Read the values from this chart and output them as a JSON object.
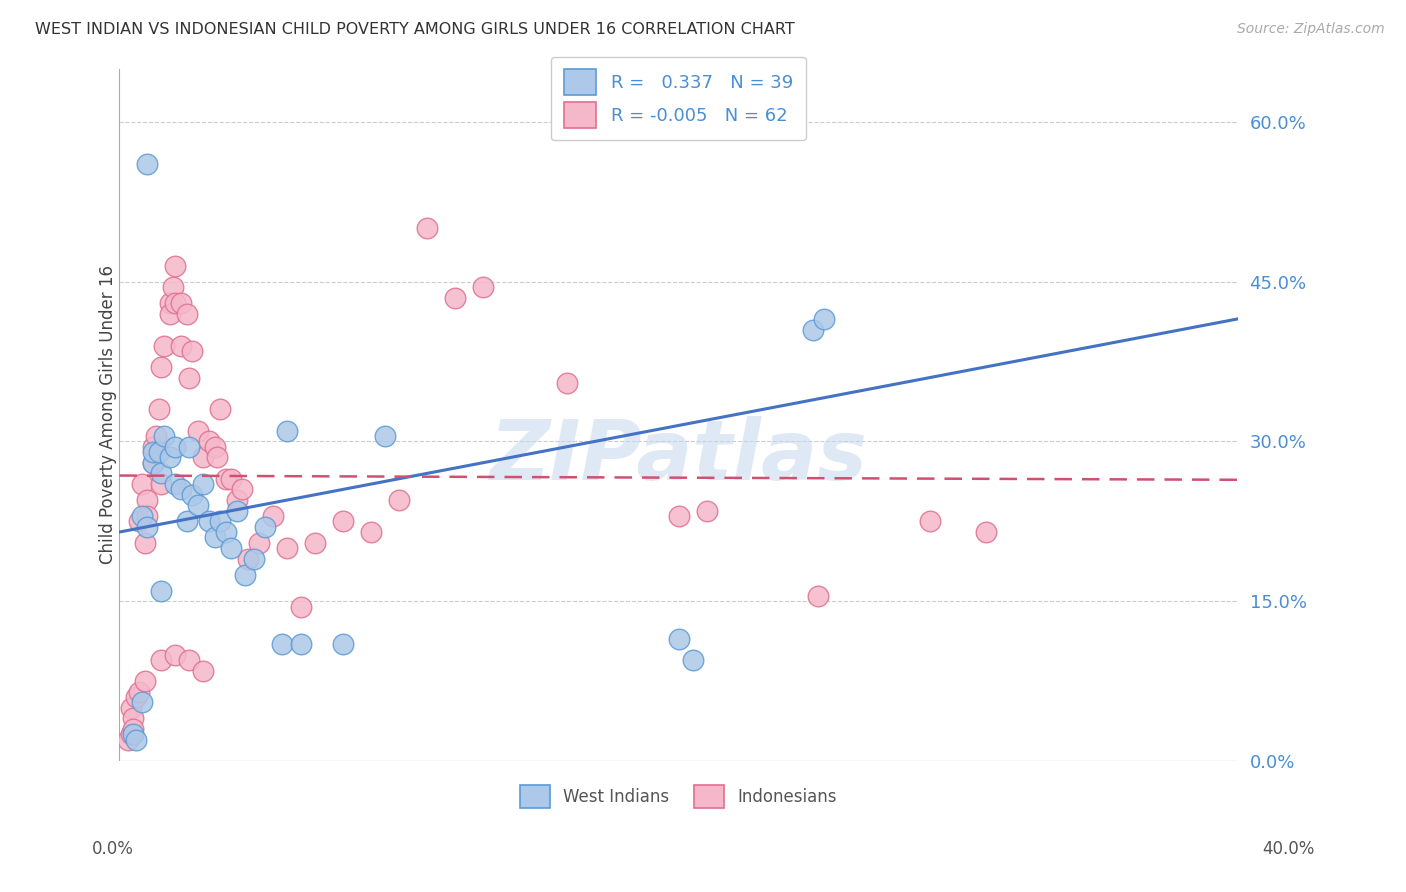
{
  "title": "WEST INDIAN VS INDONESIAN CHILD POVERTY AMONG GIRLS UNDER 16 CORRELATION CHART",
  "source": "Source: ZipAtlas.com",
  "ylabel": "Child Poverty Among Girls Under 16",
  "yticks": [
    0.0,
    0.15,
    0.3,
    0.45,
    0.6
  ],
  "ytick_labels": [
    "0.0%",
    "15.0%",
    "30.0%",
    "45.0%",
    "60.0%"
  ],
  "xmin": 0.0,
  "xmax": 0.4,
  "ymin": 0.0,
  "ymax": 0.65,
  "legend_label1": "West Indians",
  "legend_label2": "Indonesians",
  "R1": "0.337",
  "N1": "39",
  "R2": "-0.005",
  "N2": "62",
  "color_blue_fill": "#adc8e8",
  "color_blue_edge": "#5b9bd5",
  "color_pink_fill": "#f5b8ca",
  "color_pink_edge": "#e07090",
  "color_blue_line": "#4472c4",
  "color_pink_line": "#d05070",
  "color_label": "#4a8fd4",
  "watermark": "ZIPatlas",
  "wi_x": [
    0.005,
    0.006,
    0.008,
    0.01,
    0.012,
    0.012,
    0.014,
    0.015,
    0.016,
    0.018,
    0.02,
    0.02,
    0.022,
    0.024,
    0.025,
    0.026,
    0.028,
    0.03,
    0.032,
    0.034,
    0.036,
    0.038,
    0.04,
    0.042,
    0.045,
    0.048,
    0.052,
    0.058,
    0.06,
    0.065,
    0.08,
    0.095,
    0.2,
    0.205,
    0.248,
    0.252,
    0.008,
    0.01,
    0.015
  ],
  "wi_y": [
    0.025,
    0.02,
    0.055,
    0.56,
    0.28,
    0.29,
    0.29,
    0.27,
    0.305,
    0.285,
    0.26,
    0.295,
    0.255,
    0.225,
    0.295,
    0.25,
    0.24,
    0.26,
    0.225,
    0.21,
    0.225,
    0.215,
    0.2,
    0.235,
    0.175,
    0.19,
    0.22,
    0.11,
    0.31,
    0.11,
    0.11,
    0.305,
    0.115,
    0.095,
    0.405,
    0.415,
    0.23,
    0.22,
    0.16
  ],
  "ind_x": [
    0.004,
    0.005,
    0.006,
    0.007,
    0.008,
    0.009,
    0.01,
    0.01,
    0.012,
    0.012,
    0.013,
    0.014,
    0.015,
    0.015,
    0.016,
    0.018,
    0.018,
    0.019,
    0.02,
    0.02,
    0.022,
    0.022,
    0.024,
    0.025,
    0.026,
    0.028,
    0.03,
    0.032,
    0.034,
    0.035,
    0.036,
    0.038,
    0.04,
    0.042,
    0.044,
    0.046,
    0.05,
    0.055,
    0.06,
    0.065,
    0.07,
    0.08,
    0.09,
    0.1,
    0.11,
    0.12,
    0.13,
    0.16,
    0.2,
    0.21,
    0.25,
    0.29,
    0.31,
    0.003,
    0.004,
    0.005,
    0.007,
    0.009,
    0.015,
    0.02,
    0.025,
    0.03
  ],
  "ind_y": [
    0.05,
    0.04,
    0.06,
    0.225,
    0.26,
    0.205,
    0.245,
    0.23,
    0.28,
    0.295,
    0.305,
    0.33,
    0.37,
    0.26,
    0.39,
    0.43,
    0.42,
    0.445,
    0.43,
    0.465,
    0.39,
    0.43,
    0.42,
    0.36,
    0.385,
    0.31,
    0.285,
    0.3,
    0.295,
    0.285,
    0.33,
    0.265,
    0.265,
    0.245,
    0.255,
    0.19,
    0.205,
    0.23,
    0.2,
    0.145,
    0.205,
    0.225,
    0.215,
    0.245,
    0.5,
    0.435,
    0.445,
    0.355,
    0.23,
    0.235,
    0.155,
    0.225,
    0.215,
    0.02,
    0.025,
    0.03,
    0.065,
    0.075,
    0.095,
    0.1,
    0.095,
    0.085
  ],
  "blue_line_x0": 0.0,
  "blue_line_y0": 0.215,
  "blue_line_x1": 0.4,
  "blue_line_y1": 0.415,
  "pink_line_x0": 0.0,
  "pink_line_y0": 0.268,
  "pink_line_x1": 0.4,
  "pink_line_y1": 0.264
}
